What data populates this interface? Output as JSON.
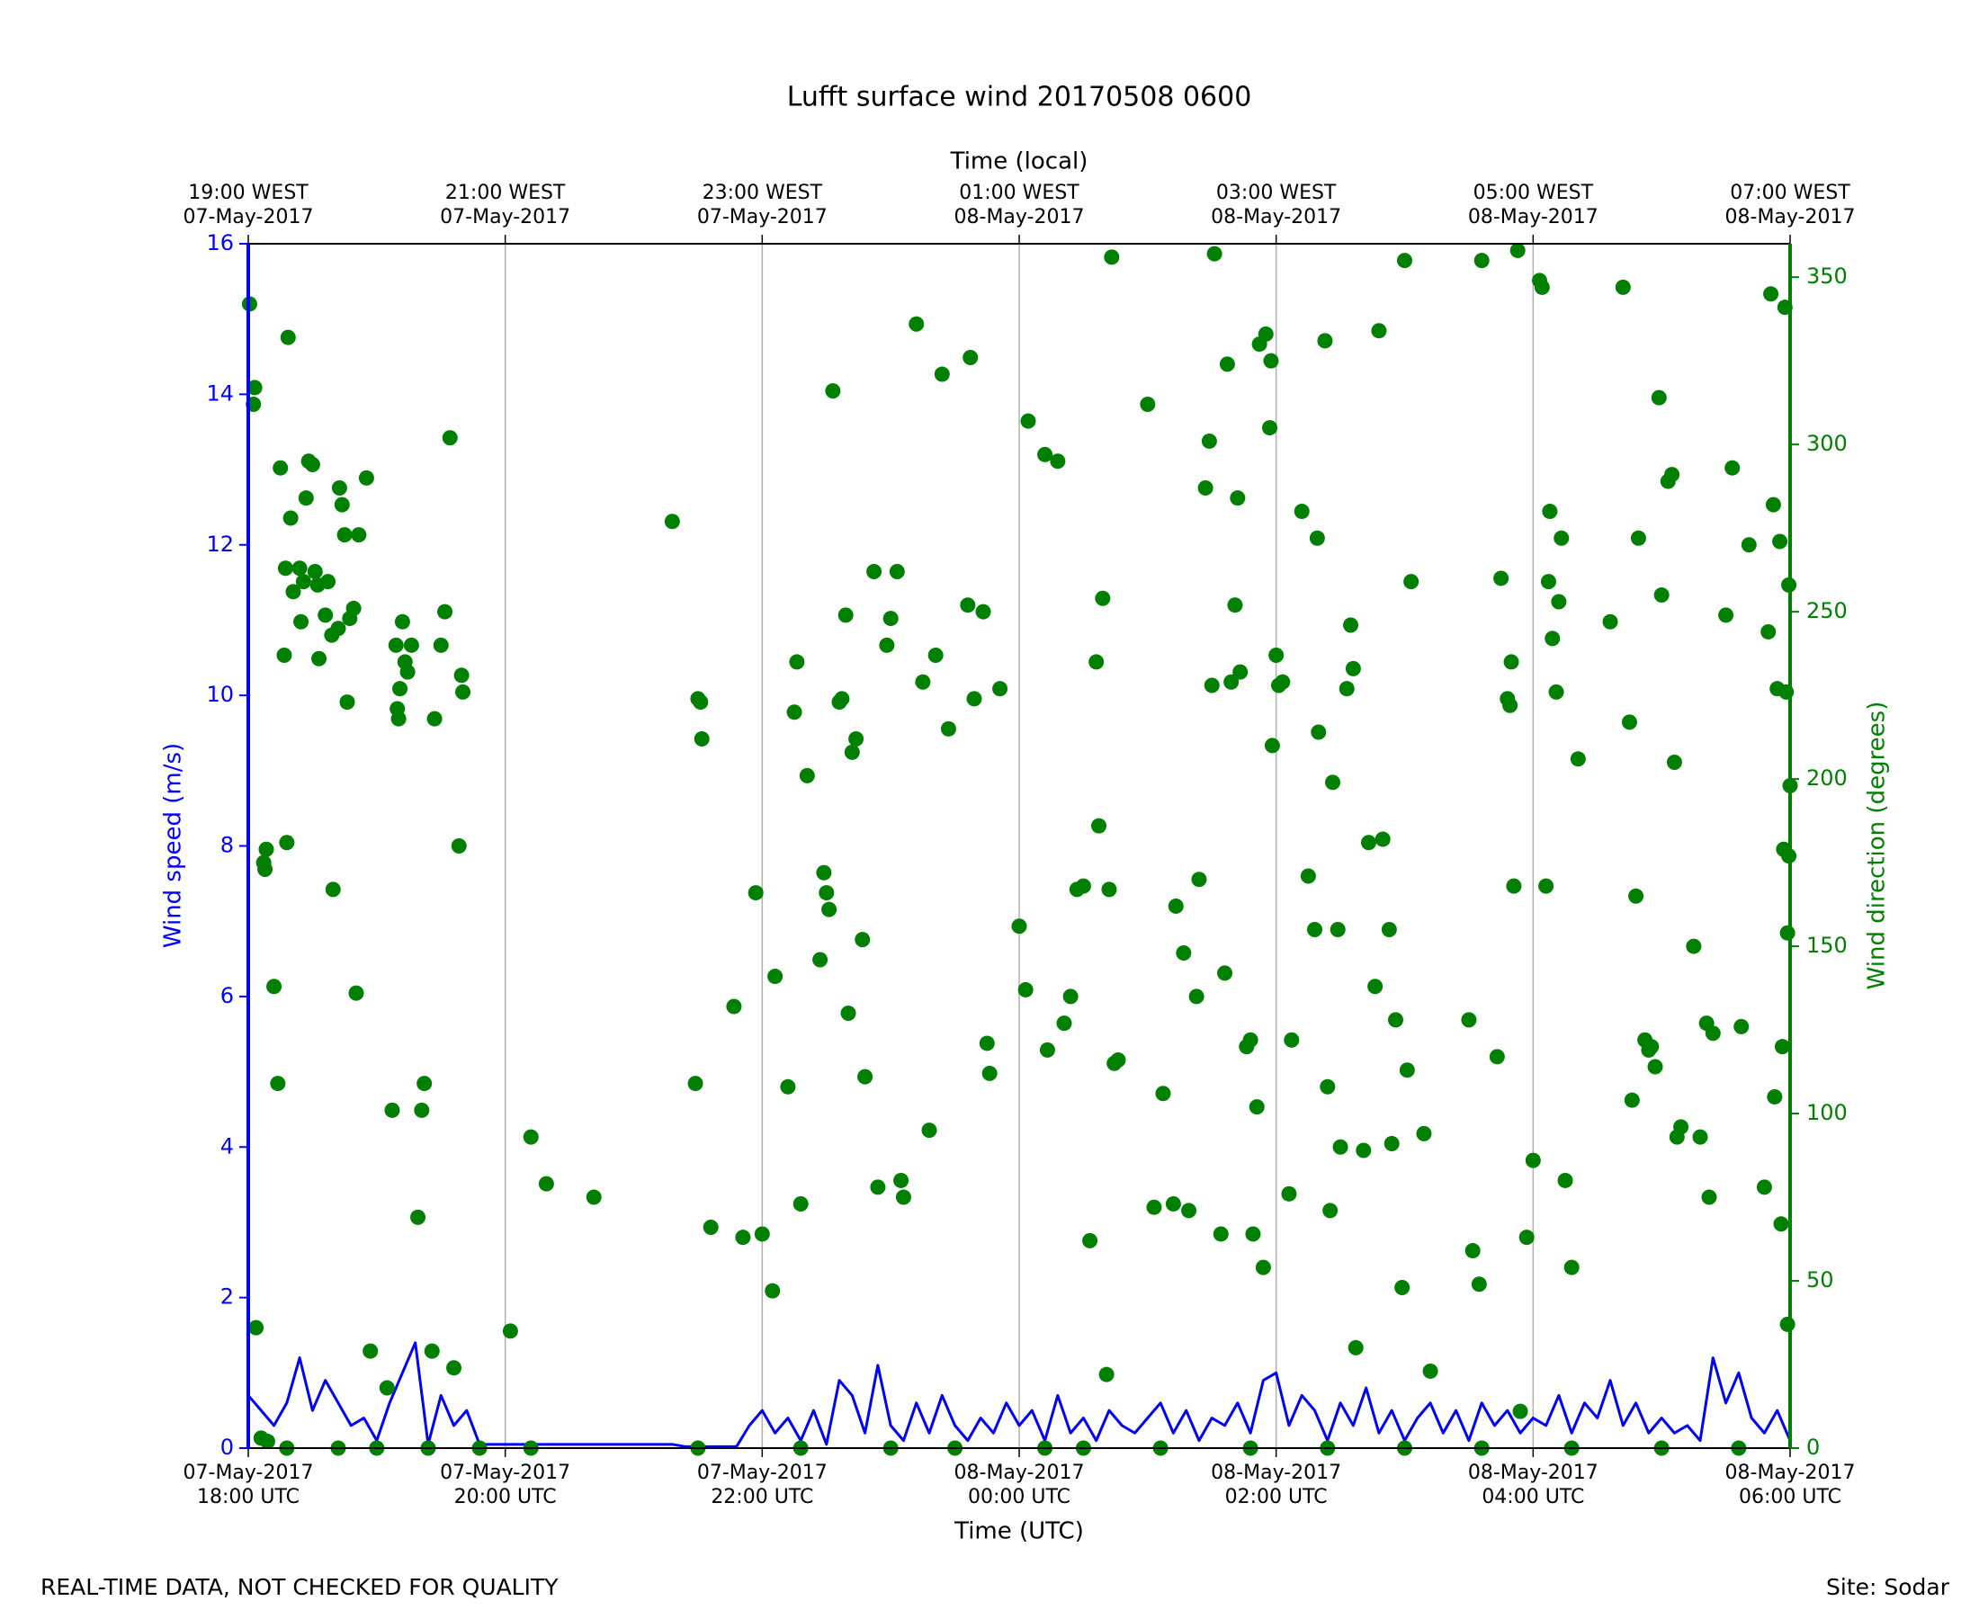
{
  "chart_data": {
    "type": "line",
    "title": "Lufft surface wind 20170508 0600",
    "xlabel": "Time (UTC)",
    "x2label": "Time (local)",
    "ylabel": "Wind speed (m/s)",
    "y2label": "Wind direction (degrees)",
    "footer_left": "REAL-TIME DATA, NOT CHECKED FOR QUALITY",
    "footer_right": "Site: Sodar",
    "xlim": [
      0,
      12
    ],
    "ylim": [
      0,
      16
    ],
    "y2lim": [
      0,
      360
    ],
    "xticks": [
      {
        "value": 0,
        "label": "07-May-2017\n18:00 UTC"
      },
      {
        "value": 2,
        "label": "07-May-2017\n20:00 UTC"
      },
      {
        "value": 4,
        "label": "07-May-2017\n22:00 UTC"
      },
      {
        "value": 6,
        "label": "08-May-2017\n00:00 UTC"
      },
      {
        "value": 8,
        "label": "08-May-2017\n02:00 UTC"
      },
      {
        "value": 10,
        "label": "08-May-2017\n04:00 UTC"
      },
      {
        "value": 12,
        "label": "08-May-2017\n06:00 UTC"
      }
    ],
    "x2ticks": [
      {
        "value": 0,
        "label": "19:00 WEST\n07-May-2017"
      },
      {
        "value": 2,
        "label": "21:00 WEST\n07-May-2017"
      },
      {
        "value": 4,
        "label": "23:00 WEST\n07-May-2017"
      },
      {
        "value": 6,
        "label": "01:00 WEST\n08-May-2017"
      },
      {
        "value": 8,
        "label": "03:00 WEST\n08-May-2017"
      },
      {
        "value": 10,
        "label": "05:00 WEST\n08-May-2017"
      },
      {
        "value": 12,
        "label": "07:00 WEST\n08-May-2017"
      }
    ],
    "yticks": [
      0,
      2,
      4,
      6,
      8,
      10,
      12,
      14,
      16
    ],
    "y2ticks": [
      0,
      50,
      100,
      150,
      200,
      250,
      300,
      350
    ],
    "grid": "x",
    "series": [
      {
        "name": "Wind speed",
        "type": "line",
        "axis": "y",
        "color": "#0000ff",
        "x": [
          0,
          0.1,
          0.2,
          0.3,
          0.4,
          0.5,
          0.6,
          0.7,
          0.8,
          0.9,
          1,
          1.1,
          1.2,
          1.3,
          1.4,
          1.5,
          1.6,
          1.7,
          1.8,
          1.9,
          2,
          2.1,
          2.2,
          2.3,
          2.4,
          2.5,
          2.6,
          2.7,
          2.8,
          2.9,
          3,
          3.1,
          3.2,
          3.3,
          3.4,
          3.5,
          3.6,
          3.7,
          3.8,
          3.9,
          4,
          4.1,
          4.2,
          4.3,
          4.4,
          4.5,
          4.6,
          4.7,
          4.8,
          4.9,
          5,
          5.1,
          5.2,
          5.3,
          5.4,
          5.5,
          5.6,
          5.7,
          5.8,
          5.9,
          6,
          6.1,
          6.2,
          6.3,
          6.4,
          6.5,
          6.6,
          6.7,
          6.8,
          6.9,
          7,
          7.1,
          7.2,
          7.3,
          7.4,
          7.5,
          7.6,
          7.7,
          7.8,
          7.9,
          8,
          8.1,
          8.2,
          8.3,
          8.4,
          8.5,
          8.6,
          8.7,
          8.8,
          8.9,
          9,
          9.1,
          9.2,
          9.3,
          9.4,
          9.5,
          9.6,
          9.7,
          9.8,
          9.9,
          10,
          10.1,
          10.2,
          10.3,
          10.4,
          10.5,
          10.6,
          10.7,
          10.8,
          10.9,
          11,
          11.1,
          11.2,
          11.3,
          11.4,
          11.5,
          11.6,
          11.7,
          11.8,
          11.9,
          12
        ],
        "values": [
          0.7,
          0.5,
          0.3,
          0.6,
          1.2,
          0.5,
          0.9,
          0.6,
          0.3,
          0.4,
          0.1,
          0.6,
          1.0,
          1.4,
          0.05,
          0.7,
          0.3,
          0.5,
          0.05,
          0.05,
          0.05,
          0.05,
          0.05,
          0.05,
          0.05,
          0.05,
          0.05,
          0.05,
          0.05,
          0.05,
          0.05,
          0.05,
          0.05,
          0.05,
          0.02,
          0.02,
          0.02,
          0.02,
          0.02,
          0.3,
          0.5,
          0.2,
          0.4,
          0.1,
          0.5,
          0.05,
          0.9,
          0.7,
          0.2,
          1.1,
          0.3,
          0.1,
          0.6,
          0.2,
          0.7,
          0.3,
          0.1,
          0.4,
          0.2,
          0.6,
          0.3,
          0.5,
          0.1,
          0.7,
          0.2,
          0.4,
          0.1,
          0.5,
          0.3,
          0.2,
          0.4,
          0.6,
          0.2,
          0.5,
          0.1,
          0.4,
          0.3,
          0.6,
          0.2,
          0.9,
          1.0,
          0.3,
          0.7,
          0.5,
          0.1,
          0.6,
          0.3,
          0.8,
          0.2,
          0.5,
          0.1,
          0.4,
          0.6,
          0.2,
          0.5,
          0.1,
          0.6,
          0.3,
          0.5,
          0.2,
          0.4,
          0.3,
          0.7,
          0.2,
          0.6,
          0.4,
          0.9,
          0.3,
          0.6,
          0.2,
          0.4,
          0.2,
          0.3,
          0.1,
          1.2,
          0.6,
          1.0,
          0.4,
          0.2,
          0.5,
          0.1
        ]
      },
      {
        "name": "Wind direction",
        "type": "scatter",
        "axis": "y2",
        "color": "#008000",
        "x": [
          0.01,
          0.05,
          0.04,
          0.12,
          0.13,
          0.14,
          0.2,
          0.23,
          0.25,
          0.28,
          0.29,
          0.3,
          0.31,
          0.33,
          0.35,
          0.4,
          0.41,
          0.43,
          0.45,
          0.47,
          0.5,
          0.52,
          0.54,
          0.55,
          0.6,
          0.62,
          0.65,
          0.66,
          0.7,
          0.71,
          0.73,
          0.75,
          0.77,
          0.79,
          0.82,
          0.84,
          0.86,
          0.92,
          1.12,
          1.15,
          1.16,
          1.17,
          1.18,
          1.2,
          1.22,
          1.24,
          1.27,
          1.32,
          1.35,
          1.37,
          1.45,
          1.5,
          1.53,
          1.57,
          1.64,
          1.66,
          1.67,
          0.1,
          0.06,
          0.15,
          0.95,
          1.08,
          1.43,
          1.6,
          2.04,
          2.2,
          2.32,
          2.69,
          3.3,
          3.48,
          3.5,
          3.52,
          3.53,
          3.6,
          3.78,
          3.85,
          3.95,
          4.0,
          4.08,
          4.1,
          4.2,
          4.25,
          4.27,
          4.3,
          4.35,
          4.45,
          4.48,
          4.5,
          4.52,
          4.55,
          4.6,
          4.62,
          4.65,
          4.67,
          4.7,
          4.73,
          4.78,
          4.8,
          4.87,
          4.9,
          4.97,
          5.0,
          5.05,
          5.08,
          5.1,
          5.2,
          5.25,
          5.3,
          5.35,
          5.4,
          5.45,
          5.6,
          5.62,
          5.65,
          5.72,
          5.75,
          5.77,
          5.85,
          6.0,
          6.05,
          6.07,
          6.2,
          6.22,
          6.3,
          6.35,
          6.4,
          6.45,
          6.5,
          6.55,
          6.6,
          6.62,
          6.65,
          6.7,
          6.72,
          6.68,
          6.74,
          6.77,
          7.0,
          7.05,
          7.12,
          7.2,
          7.22,
          7.28,
          7.32,
          7.38,
          7.4,
          7.45,
          7.48,
          7.5,
          7.52,
          7.57,
          7.6,
          7.62,
          7.65,
          7.68,
          7.7,
          7.72,
          7.77,
          7.8,
          7.82,
          7.85,
          7.87,
          7.9,
          7.92,
          7.95,
          7.97,
          7.96,
          8.0,
          8.02,
          8.05,
          8.1,
          8.12,
          8.2,
          8.25,
          8.3,
          8.32,
          8.33,
          8.38,
          8.4,
          8.42,
          8.44,
          8.48,
          8.5,
          8.55,
          8.58,
          8.6,
          8.62,
          8.68,
          8.72,
          8.77,
          8.8,
          8.83,
          8.88,
          8.9,
          8.93,
          8.98,
          9.0,
          9.02,
          9.05,
          9.15,
          9.2,
          9.5,
          9.53,
          9.58,
          9.6,
          9.72,
          9.75,
          9.8,
          9.82,
          9.83,
          9.85,
          9.88,
          9.95,
          10.0,
          10.05,
          10.07,
          9.9,
          10.1,
          10.12,
          10.13,
          10.15,
          10.18,
          10.2,
          10.22,
          10.25,
          10.3,
          10.35,
          10.6,
          10.7,
          10.75,
          10.77,
          10.8,
          10.82,
          10.87,
          10.9,
          10.92,
          10.95,
          10.98,
          11.0,
          11.05,
          11.08,
          11.1,
          11.12,
          11.15,
          11.25,
          11.3,
          11.35,
          11.37,
          11.4,
          11.5,
          11.55,
          11.62,
          11.68,
          11.8,
          11.83,
          11.85,
          11.87,
          11.9,
          11.92,
          11.95,
          11.97,
          11.98,
          11.99,
          11.88,
          11.93,
          11.96,
          11.94,
          11.99,
          11.98,
          12.0,
          0.3,
          0.7,
          1.0,
          1.4,
          1.8,
          2.2,
          3.5,
          4.3,
          5.0,
          5.5,
          6.2,
          6.5,
          7.1,
          7.8,
          8.4,
          9.0,
          9.6,
          10.3,
          11.0,
          11.6
        ],
        "values": [
          342,
          317,
          312,
          175,
          173,
          179,
          138,
          109,
          293,
          237,
          263,
          181,
          332,
          278,
          256,
          263,
          247,
          259,
          284,
          295,
          294,
          262,
          258,
          236,
          249,
          259,
          243,
          167,
          245,
          287,
          282,
          273,
          223,
          248,
          251,
          136,
          273,
          290,
          101,
          240,
          221,
          218,
          227,
          247,
          235,
          232,
          240,
          69,
          101,
          109,
          218,
          240,
          250,
          302,
          180,
          231,
          226,
          3,
          36,
          2,
          29,
          18,
          29,
          24,
          35,
          93,
          79,
          75,
          277,
          109,
          224,
          223,
          212,
          66,
          132,
          63,
          166,
          64,
          47,
          141,
          108,
          220,
          235,
          73,
          201,
          146,
          172,
          166,
          161,
          316,
          223,
          224,
          249,
          130,
          208,
          212,
          152,
          111,
          262,
          78,
          240,
          248,
          262,
          80,
          75,
          336,
          229,
          95,
          237,
          321,
          215,
          252,
          326,
          224,
          250,
          121,
          112,
          227,
          156,
          137,
          307,
          297,
          119,
          295,
          127,
          135,
          167,
          168,
          62,
          235,
          186,
          254,
          167,
          356,
          22,
          115,
          116,
          312,
          72,
          106,
          73,
          162,
          148,
          71,
          135,
          170,
          287,
          301,
          228,
          357,
          64,
          142,
          324,
          229,
          252,
          284,
          232,
          120,
          122,
          64,
          102,
          330,
          54,
          333,
          305,
          210,
          325,
          237,
          228,
          229,
          76,
          122,
          280,
          171,
          155,
          272,
          214,
          331,
          108,
          71,
          199,
          155,
          90,
          227,
          246,
          233,
          30,
          89,
          181,
          138,
          334,
          182,
          155,
          91,
          128,
          48,
          355,
          113,
          259,
          94,
          23,
          128,
          59,
          49,
          355,
          117,
          260,
          224,
          222,
          235,
          168,
          358,
          63,
          86,
          349,
          347,
          11,
          168,
          259,
          280,
          242,
          226,
          253,
          272,
          80,
          54,
          206,
          247,
          347,
          217,
          104,
          165,
          272,
          122,
          119,
          120,
          114,
          314,
          255,
          289,
          291,
          205,
          93,
          96,
          150,
          93,
          127,
          75,
          124,
          249,
          293,
          126,
          270,
          78,
          244,
          345,
          282,
          227,
          271,
          179,
          226,
          37,
          258,
          105,
          67,
          341,
          120,
          177,
          154,
          198,
          0,
          0,
          0,
          0,
          0,
          0,
          0,
          0,
          0,
          0,
          0,
          0,
          0,
          0,
          0,
          0,
          0,
          0,
          0,
          0
        ]
      }
    ]
  }
}
